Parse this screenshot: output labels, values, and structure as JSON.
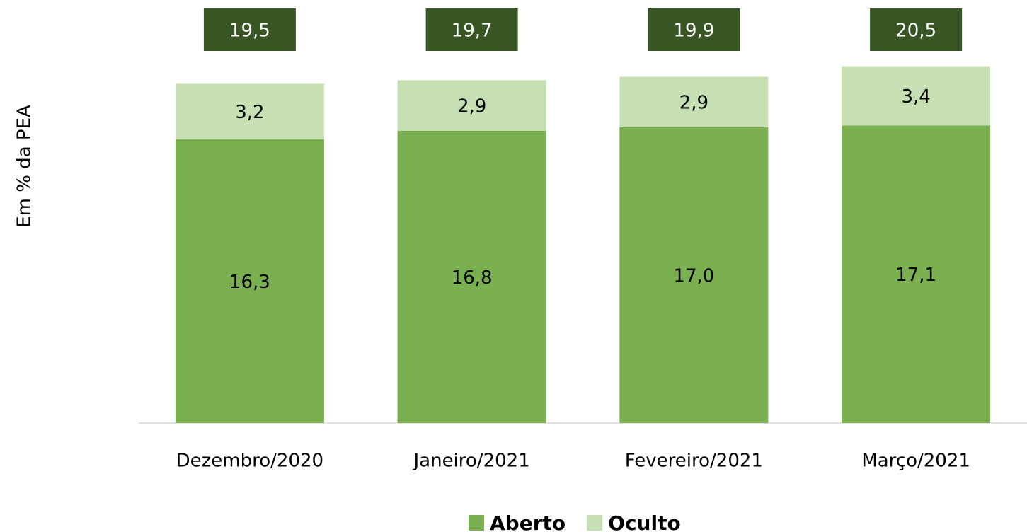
{
  "chart_data": {
    "type": "stacked_bar",
    "y_label": "Em % da PEA",
    "categories": [
      "Dezembro/2020",
      "Janeiro/2021",
      "Fevereiro/2021",
      "Março/2021"
    ],
    "series": [
      {
        "name": "Aberto",
        "color": "#7ab04f",
        "values": [
          16.3,
          16.8,
          17.0,
          17.1
        ],
        "value_labels": [
          "16,3",
          "16,8",
          "17,0",
          "17,1"
        ]
      },
      {
        "name": "Oculto",
        "color": "#c6e0b4",
        "values": [
          3.2,
          2.9,
          2.9,
          3.4
        ],
        "value_labels": [
          "3,2",
          "2,9",
          "2,9",
          "3,4"
        ]
      }
    ],
    "totals": [
      19.5,
      19.7,
      19.9,
      20.5
    ],
    "total_labels": [
      "19,5",
      "19,7",
      "19,9",
      "20,5"
    ],
    "total_color": "#375623",
    "ylim": [
      0,
      24
    ],
    "legend": "bottom"
  }
}
